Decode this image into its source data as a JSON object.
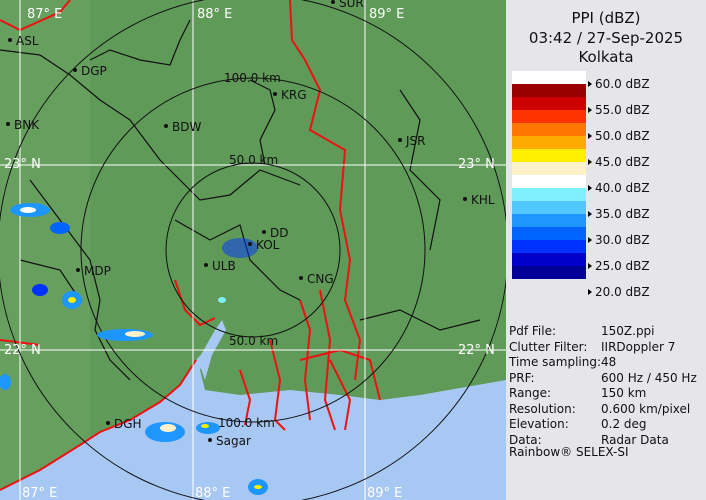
{
  "header": {
    "product": "PPI (dBZ)",
    "datetime": "03:42 / 27-Sep-2025",
    "site": "Kolkata"
  },
  "legend": {
    "labels": [
      "60.0 dBZ",
      "55.0 dBZ",
      "50.0 dBZ",
      "45.0 dBZ",
      "40.0 dBZ",
      "35.0 dBZ",
      "30.0 dBZ",
      "25.0 dBZ",
      "20.0 dBZ"
    ],
    "colors": [
      "#ffffff",
      "#9a0000",
      "#cc0000",
      "#ff3300",
      "#ff7700",
      "#ffaa00",
      "#ffee00",
      "#fff2c8",
      "#ffffff",
      "#80f0ff",
      "#50c8ff",
      "#1e96ff",
      "#0064ff",
      "#0032ff",
      "#0000c8",
      "#000096"
    ]
  },
  "metadata": [
    {
      "key": "Pdf File:",
      "value": "150Z.ppi"
    },
    {
      "key": "Clutter Filter:",
      "value": "IIRDoppler 7"
    },
    {
      "key": "Time sampling:",
      "value": "48"
    },
    {
      "key": "PRF:",
      "value": "600 Hz / 450 Hz"
    },
    {
      "key": "Range:",
      "value": "150 km"
    },
    {
      "key": "Resolution:",
      "value": "0.600 km/pixel"
    },
    {
      "key": "Elevation:",
      "value": "0.2 deg"
    },
    {
      "key": "Data:",
      "value": "Radar Data"
    }
  ],
  "footer": "Rainbow® SELEX-SI",
  "map": {
    "grid_labels": {
      "lon87": "87° E",
      "lon88": "88° E",
      "lon89": "89° E",
      "lat23": "23° N",
      "lat22": "22° N"
    },
    "range_labels": {
      "r100": "100.0 km",
      "r50_top": "50.0 km",
      "r50_bottom": "50.0 km",
      "r100_bottom": "100.0 km"
    },
    "cities": [
      "SUR",
      "ASL",
      "DGP",
      "BNK",
      "BDW",
      "KRG",
      "JSR",
      "KHL",
      "DD",
      "KOL",
      "ULB",
      "MDP",
      "CNG",
      "DGH",
      "Sagar"
    ],
    "colors": {
      "land": "#5f9a58",
      "sea": "#a8c8f4",
      "border": "#111111",
      "river": "#ee1111",
      "grid": "#ffffff"
    }
  }
}
